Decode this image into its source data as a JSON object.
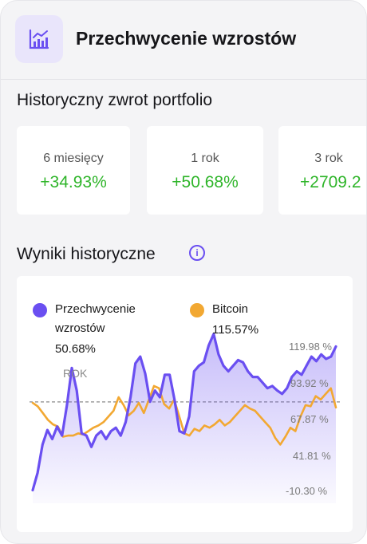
{
  "header": {
    "title": "Przechwycenie wzrostów",
    "icon": "bar-chart-icon"
  },
  "returns_section": {
    "title": "Historyczny zwrot portfolio",
    "items": [
      {
        "period": "6 miesięcy",
        "value": "+34.93%"
      },
      {
        "period": "1 rok",
        "value": "+50.68%"
      },
      {
        "period": "3 rok",
        "value": "+2709.2"
      }
    ]
  },
  "results_section": {
    "title": "Wyniki historyczne",
    "info_icon": "info-icon"
  },
  "colors": {
    "portfolio": "#6a4ff1",
    "bitcoin": "#f2a832",
    "positive": "#2fb52a"
  },
  "chart_data": {
    "type": "line",
    "series": [
      {
        "name": "Przechwycenie wzrostów",
        "legend_value": "50.68%",
        "values": [
          -10.3,
          5,
          30,
          43,
          35,
          46,
          38,
          65,
          98,
          78,
          40,
          38,
          28,
          38,
          42,
          35,
          42,
          45,
          38,
          50,
          72,
          102,
          108,
          93,
          68,
          78,
          72,
          92,
          92,
          70,
          42,
          40,
          55,
          95,
          100,
          103,
          118,
          128,
          110,
          100,
          95,
          100,
          105,
          103,
          95,
          90,
          90,
          85,
          80,
          82,
          78,
          75,
          80,
          90,
          95,
          92,
          100,
          108,
          104,
          110,
          106,
          108,
          117
        ]
      },
      {
        "name": "Bitcoin",
        "legend_value": "115.57%",
        "values": [
          67,
          64,
          58,
          52,
          48,
          46,
          37,
          38,
          38,
          40,
          39,
          42,
          45,
          47,
          50,
          55,
          60,
          72,
          65,
          56,
          60,
          67,
          58,
          70,
          82,
          80,
          66,
          62,
          70,
          55,
          40,
          38,
          44,
          42,
          47,
          45,
          48,
          52,
          47,
          50,
          55,
          60,
          65,
          62,
          60,
          55,
          50,
          45,
          36,
          30,
          37,
          45,
          42,
          55,
          65,
          64,
          73,
          70,
          75,
          80,
          63
        ]
      }
    ],
    "period_label": "ROK",
    "y_tick_labels": [
      "119.98 %",
      "93.92 %",
      "67.87 %",
      "41.81 %",
      "-10.30 %"
    ],
    "ylim": [
      -22,
      130
    ],
    "reference_line": 67.87,
    "grid": false,
    "legend": "top"
  }
}
